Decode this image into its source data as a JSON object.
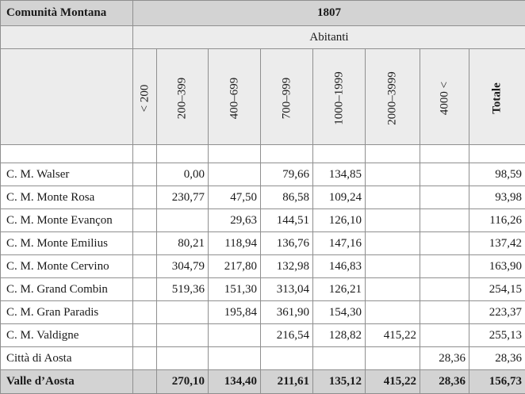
{
  "header": {
    "region_label": "Comunità Montana",
    "year": "1807",
    "sub_label": "Abitanti",
    "columns": [
      "< 200",
      "200–399",
      "400–699",
      "700–999",
      "1000–1999",
      "2000–3999",
      "4000 <",
      "Totale"
    ]
  },
  "rows": [
    {
      "name": "C. M. Walser",
      "values": [
        "",
        "0,00",
        "",
        "79,66",
        "134,85",
        "",
        "",
        "98,59"
      ]
    },
    {
      "name": "C. M. Monte Rosa",
      "values": [
        "",
        "230,77",
        "47,50",
        "86,58",
        "109,24",
        "",
        "",
        "93,98"
      ]
    },
    {
      "name": "C. M. Monte Evançon",
      "values": [
        "",
        "",
        "29,63",
        "144,51",
        "126,10",
        "",
        "",
        "116,26"
      ]
    },
    {
      "name": "C. M. Monte Emilius",
      "values": [
        "",
        "80,21",
        "118,94",
        "136,76",
        "147,16",
        "",
        "",
        "137,42"
      ]
    },
    {
      "name": "C. M. Monte Cervino",
      "values": [
        "",
        "304,79",
        "217,80",
        "132,98",
        "146,83",
        "",
        "",
        "163,90"
      ]
    },
    {
      "name": "C. M. Grand Combin",
      "values": [
        "",
        "519,36",
        "151,30",
        "313,04",
        "126,21",
        "",
        "",
        "254,15"
      ]
    },
    {
      "name": "C. M. Gran Paradis",
      "values": [
        "",
        "",
        "195,84",
        "361,90",
        "154,30",
        "",
        "",
        "223,37"
      ]
    },
    {
      "name": "C. M. Valdigne",
      "values": [
        "",
        "",
        "",
        "216,54",
        "128,82",
        "415,22",
        "",
        "255,13"
      ]
    },
    {
      "name": "Città di Aosta",
      "values": [
        "",
        "",
        "",
        "",
        "",
        "",
        "28,36",
        "28,36"
      ]
    }
  ],
  "total": {
    "name": "Valle d’Aosta",
    "values": [
      "",
      "270,10",
      "134,40",
      "211,61",
      "135,12",
      "415,22",
      "28,36",
      "156,73"
    ]
  }
}
